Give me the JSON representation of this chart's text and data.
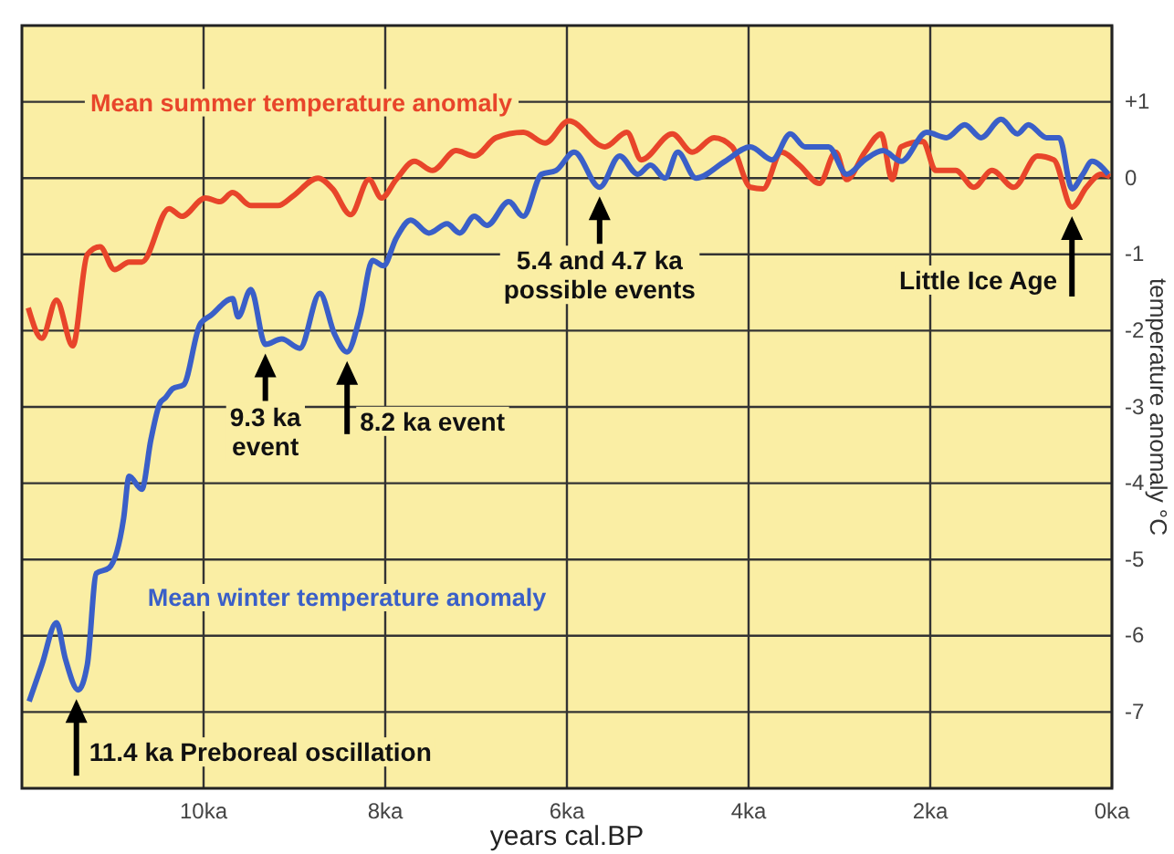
{
  "chart_data": {
    "type": "line",
    "xlabel": "years cal.BP",
    "ylabel": "temperature anomaly °C",
    "xlim": [
      12,
      0
    ],
    "xticks": [
      {
        "value": 10,
        "label": "10ka"
      },
      {
        "value": 8,
        "label": "8ka"
      },
      {
        "value": 6,
        "label": "6ka"
      },
      {
        "value": 4,
        "label": "4ka"
      },
      {
        "value": 2,
        "label": "2ka"
      },
      {
        "value": 0,
        "label": "0ka"
      }
    ],
    "ylim": [
      -8,
      2
    ],
    "yticks": [
      -7,
      -6,
      -5,
      -4,
      -3,
      -2,
      -1,
      0,
      {
        "value": 1,
        "label": "+1"
      }
    ],
    "grid": true,
    "legend": false,
    "line_style": "solid",
    "marker": "none",
    "series": [
      {
        "name": "Mean summer temperature anomaly",
        "color": "#e8452a",
        "x": [
          11.93,
          11.78,
          11.62,
          11.44,
          11.28,
          11.14,
          10.98,
          10.82,
          10.68,
          10.38,
          10.24,
          9.98,
          9.82,
          9.68,
          9.48,
          9.18,
          9.02,
          8.74,
          8.58,
          8.38,
          8.18,
          8.04,
          7.88,
          7.68,
          7.48,
          7.22,
          7.02,
          6.78,
          6.48,
          6.24,
          5.98,
          5.58,
          5.34,
          5.18,
          4.84,
          4.62,
          4.38,
          4.18,
          3.98,
          3.84,
          3.64,
          3.44,
          3.22,
          3.04,
          2.92,
          2.72,
          2.54,
          2.42,
          2.32,
          2.08,
          1.94,
          1.72,
          1.52,
          1.32,
          1.08,
          0.82,
          0.64,
          0.44,
          0.28,
          0.12,
          0.02
        ],
        "values": [
          -1.7,
          -2.1,
          -1.6,
          -2.2,
          -1.0,
          -0.9,
          -1.2,
          -1.1,
          -1.1,
          -0.4,
          -0.5,
          -0.26,
          -0.31,
          -0.19,
          -0.36,
          -0.36,
          -0.24,
          0,
          -0.14,
          -0.48,
          -0.02,
          -0.26,
          -0.02,
          0.22,
          0.1,
          0.36,
          0.29,
          0.53,
          0.6,
          0.46,
          0.75,
          0.41,
          0.6,
          0.24,
          0.58,
          0.34,
          0.53,
          0.41,
          -0.12,
          -0.14,
          0.34,
          0.17,
          -0.07,
          0.34,
          -0.02,
          0.34,
          0.58,
          -0.02,
          0.41,
          0.48,
          0.1,
          0.1,
          -0.12,
          0.1,
          -0.12,
          0.29,
          0.24,
          -0.38,
          -0.12,
          0.05,
          0.02
        ]
      },
      {
        "name": "Mean winter temperature anomaly",
        "color": "#3a5fc8",
        "x": [
          11.92,
          11.78,
          11.62,
          11.52,
          11.38,
          11.28,
          11.18,
          11.04,
          10.88,
          10.82,
          10.68,
          10.58,
          10.48,
          10.42,
          10.34,
          10.22,
          10.04,
          9.92,
          9.68,
          9.62,
          9.48,
          9.32,
          9.14,
          8.94,
          8.72,
          8.56,
          8.42,
          8.28,
          8.14,
          8.02,
          7.88,
          7.72,
          7.52,
          7.32,
          7.18,
          7.02,
          6.88,
          6.64,
          6.48,
          6.28,
          6.12,
          5.92,
          5.64,
          5.42,
          5.22,
          5.08,
          4.92,
          4.78,
          4.58,
          4.26,
          3.98,
          3.74,
          3.54,
          3.38,
          3.12,
          2.92,
          2.72,
          2.52,
          2.32,
          2.04,
          1.82,
          1.62,
          1.44,
          1.22,
          1.04,
          0.92,
          0.72,
          0.58,
          0.44,
          0.32,
          0.22,
          0.04
        ],
        "values": [
          -6.86,
          -6.38,
          -5.83,
          -6.31,
          -6.71,
          -6.38,
          -5.18,
          -5.11,
          -4.46,
          -3.91,
          -4.08,
          -3.43,
          -2.95,
          -2.88,
          -2.76,
          -2.71,
          -1.92,
          -1.8,
          -1.58,
          -1.82,
          -1.46,
          -2.18,
          -2.11,
          -2.23,
          -1.51,
          -2.04,
          -2.28,
          -1.82,
          -1.08,
          -1.15,
          -0.79,
          -0.55,
          -0.72,
          -0.6,
          -0.72,
          -0.5,
          -0.62,
          -0.31,
          -0.5,
          0.05,
          0.1,
          0.34,
          -0.12,
          0.29,
          0.05,
          0.17,
          0,
          0.34,
          0,
          0.22,
          0.41,
          0.24,
          0.58,
          0.41,
          0.41,
          0.05,
          0.24,
          0.36,
          0.22,
          0.6,
          0.53,
          0.7,
          0.53,
          0.77,
          0.58,
          0.7,
          0.53,
          0.53,
          -0.14,
          0.05,
          0.22,
          0.05
        ]
      }
    ],
    "annotations": [
      {
        "text": "11.4 ka Preboreal oscillation",
        "x": 11.4,
        "y": -6.71
      },
      {
        "text": "9.3 ka event",
        "x": 9.32,
        "y": -2.18
      },
      {
        "text": "8.2 ka event",
        "x": 8.42,
        "y": -2.28
      },
      {
        "text": "5.4 and 4.7 ka possible events",
        "x": 5.64,
        "y": -0.12
      },
      {
        "text": "Little Ice Age",
        "x": 0.44,
        "y": -0.38
      }
    ]
  }
}
